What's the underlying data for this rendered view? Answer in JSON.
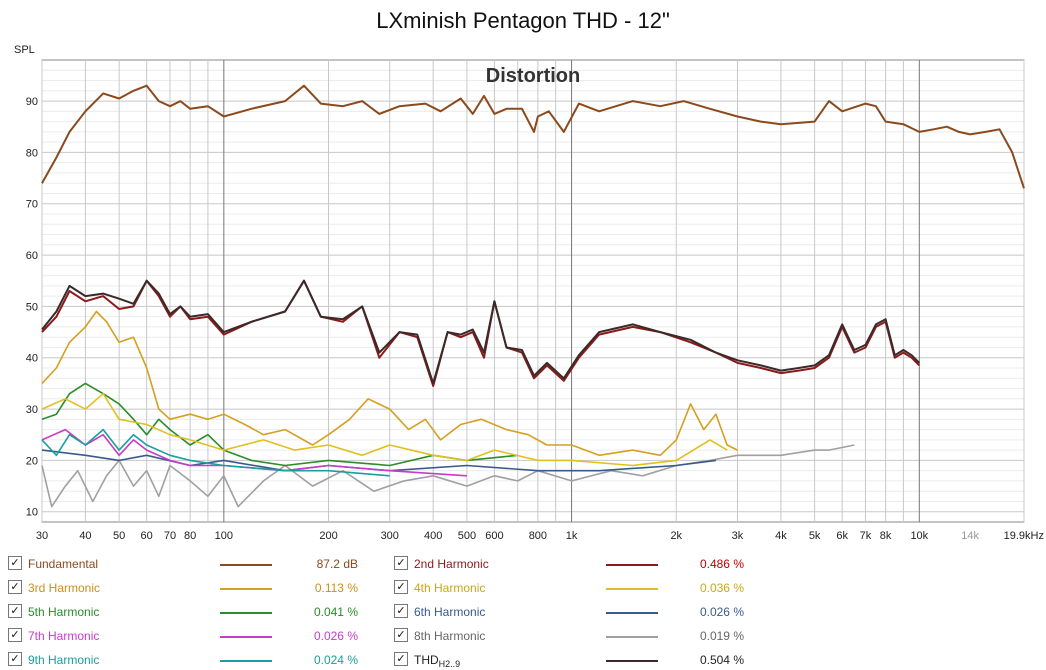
{
  "chart_data": {
    "type": "line",
    "title": "LXminish Pentagon THD - 12\"",
    "subtitle": "Distortion",
    "ylabel": "SPL",
    "xlabel": "",
    "xscale": "log",
    "xlim": [
      30,
      20000
    ],
    "ylim": [
      8,
      98
    ],
    "grid": true,
    "x_tick_labels": [
      {
        "v": 30,
        "t": "30"
      },
      {
        "v": 40,
        "t": "40"
      },
      {
        "v": 50,
        "t": "50"
      },
      {
        "v": 60,
        "t": "60"
      },
      {
        "v": 70,
        "t": "70"
      },
      {
        "v": 80,
        "t": "80"
      },
      {
        "v": 100,
        "t": "100"
      },
      {
        "v": 200,
        "t": "200"
      },
      {
        "v": 300,
        "t": "300"
      },
      {
        "v": 400,
        "t": "400"
      },
      {
        "v": 500,
        "t": "500"
      },
      {
        "v": 600,
        "t": "600"
      },
      {
        "v": 800,
        "t": "800"
      },
      {
        "v": 1000,
        "t": "1k"
      },
      {
        "v": 2000,
        "t": "2k"
      },
      {
        "v": 3000,
        "t": "3k"
      },
      {
        "v": 4000,
        "t": "4k"
      },
      {
        "v": 5000,
        "t": "5k"
      },
      {
        "v": 6000,
        "t": "6k"
      },
      {
        "v": 7000,
        "t": "7k"
      },
      {
        "v": 8000,
        "t": "8k"
      },
      {
        "v": 10000,
        "t": "10k"
      },
      {
        "v": 14000,
        "t": "14k"
      },
      {
        "v": 19900,
        "t": "19.9kHz"
      }
    ],
    "y_ticks": [
      10,
      20,
      30,
      40,
      50,
      60,
      70,
      80,
      90
    ],
    "series": [
      {
        "name": "Fundamental",
        "color": "#8b4a1c",
        "value": "87.2 dB",
        "x": [
          30,
          33,
          36,
          40,
          45,
          50,
          55,
          60,
          65,
          70,
          75,
          80,
          90,
          100,
          120,
          150,
          170,
          190,
          220,
          250,
          280,
          320,
          380,
          420,
          480,
          520,
          560,
          600,
          650,
          720,
          780,
          800,
          860,
          950,
          1050,
          1200,
          1500,
          1800,
          2100,
          2500,
          3000,
          3500,
          4000,
          5000,
          5500,
          6000,
          7000,
          7500,
          8000,
          9000,
          10000,
          11000,
          12000,
          13000,
          14000,
          15500,
          17000,
          18500,
          20000
        ],
        "y": [
          74,
          79,
          84,
          88,
          91.5,
          90.5,
          92,
          93,
          90,
          89,
          90,
          88.5,
          89,
          87,
          88.5,
          90,
          93,
          89.5,
          89,
          90,
          87.5,
          89,
          89.5,
          88,
          90.5,
          87.5,
          91,
          87.5,
          88.5,
          88.5,
          84,
          87,
          88,
          84,
          89.5,
          88,
          90,
          89,
          90,
          88.5,
          87,
          86,
          85.5,
          86,
          90,
          88,
          89.5,
          89,
          86,
          85.5,
          84,
          84.5,
          85,
          84,
          83.5,
          84,
          84.5,
          80,
          73
        ]
      },
      {
        "name": "2nd Harmonic",
        "color": "#8b1a1a",
        "value": "0.486 %",
        "x": [
          30,
          33,
          36,
          40,
          45,
          50,
          55,
          60,
          65,
          70,
          75,
          80,
          90,
          100,
          120,
          150,
          170,
          190,
          220,
          250,
          280,
          320,
          360,
          400,
          440,
          480,
          520,
          560,
          600,
          650,
          720,
          780,
          850,
          950,
          1050,
          1200,
          1500,
          1800,
          2200,
          2600,
          3000,
          3500,
          4000,
          4500,
          5000,
          5500,
          6000,
          6500,
          7000,
          7500,
          8000,
          8500,
          9000,
          9500,
          10000
        ],
        "y": [
          45,
          48,
          53,
          51,
          52,
          49.5,
          50,
          55,
          52,
          48,
          50,
          47.5,
          48,
          44.5,
          47,
          49,
          55,
          48,
          47,
          50,
          40,
          45,
          44,
          34.5,
          45,
          44,
          45,
          40,
          51,
          42,
          41,
          36,
          38.5,
          35.5,
          40,
          44.5,
          46,
          45,
          43,
          41,
          39,
          38,
          37,
          37.5,
          38,
          40,
          46,
          41,
          42,
          46,
          47,
          40,
          41,
          40,
          38.5
        ]
      },
      {
        "name": "3rd Harmonic",
        "color": "#d4a020",
        "value": "0.113 %",
        "x": [
          30,
          33,
          36,
          40,
          43,
          46,
          50,
          55,
          60,
          65,
          70,
          80,
          90,
          100,
          115,
          130,
          150,
          180,
          200,
          230,
          260,
          300,
          340,
          380,
          420,
          480,
          550,
          650,
          750,
          850,
          1000,
          1200,
          1500,
          1800,
          2000,
          2200,
          2400,
          2600,
          2800,
          3000
        ],
        "y": [
          35,
          38,
          43,
          46,
          49,
          47,
          43,
          44,
          38,
          30,
          28,
          29,
          28,
          29,
          27,
          25,
          26,
          23,
          25,
          28,
          32,
          30,
          26,
          28,
          24,
          27,
          28,
          26,
          25,
          23,
          23,
          21,
          22,
          21,
          24,
          31,
          26,
          29,
          23,
          22
        ]
      },
      {
        "name": "4th Harmonic",
        "color": "#e0c020",
        "value": "0.036 %",
        "x": [
          30,
          35,
          40,
          45,
          50,
          60,
          70,
          80,
          100,
          130,
          160,
          200,
          250,
          300,
          400,
          500,
          600,
          800,
          1000,
          1500,
          2000,
          2500,
          2800
        ],
        "y": [
          30,
          32,
          30,
          33,
          28,
          27,
          25,
          24,
          22,
          24,
          22,
          23,
          21,
          23,
          21,
          20,
          22,
          20,
          20,
          19,
          20,
          24,
          22
        ]
      },
      {
        "name": "5th Harmonic",
        "color": "#2a8c2a",
        "value": "0.041 %",
        "x": [
          30,
          33,
          36,
          40,
          45,
          50,
          55,
          60,
          65,
          70,
          80,
          90,
          100,
          120,
          150,
          200,
          300,
          400,
          500,
          700
        ],
        "y": [
          28,
          29,
          33,
          35,
          33,
          31,
          28,
          25,
          28,
          26,
          23,
          25,
          22,
          20,
          19,
          20,
          19,
          21,
          20,
          21
        ]
      },
      {
        "name": "6th Harmonic",
        "color": "#3a5a8c",
        "value": "0.026 %",
        "x": [
          30,
          40,
          50,
          60,
          80,
          100,
          150,
          200,
          300,
          500,
          800,
          1200,
          2000,
          2600
        ],
        "y": [
          22,
          21,
          20,
          21,
          19,
          20,
          18,
          19,
          18,
          19,
          18,
          18,
          19,
          20
        ]
      },
      {
        "name": "7th Harmonic",
        "color": "#c83cc8",
        "value": "0.026 %",
        "x": [
          30,
          35,
          40,
          45,
          50,
          55,
          60,
          70,
          80,
          100,
          150,
          200,
          300,
          500
        ],
        "y": [
          24,
          26,
          23,
          25,
          21,
          24,
          22,
          20,
          19,
          19,
          18,
          19,
          18,
          17
        ]
      },
      {
        "name": "8th Harmonic",
        "color": "#a0a0a0",
        "value": "0.019 %",
        "x": [
          30,
          32,
          35,
          38,
          42,
          46,
          50,
          55,
          60,
          65,
          70,
          80,
          90,
          100,
          110,
          130,
          150,
          180,
          220,
          270,
          330,
          400,
          500,
          600,
          700,
          800,
          1000,
          1300,
          1600,
          2000,
          2500,
          3000,
          4000,
          5000,
          5500,
          6500
        ],
        "y": [
          19,
          11,
          15,
          18,
          12,
          17,
          20,
          15,
          18,
          13,
          19,
          16,
          13,
          17,
          11,
          16,
          19,
          15,
          18,
          14,
          16,
          17,
          15,
          17,
          16,
          18,
          16,
          18,
          17,
          19,
          20,
          21,
          21,
          22,
          22,
          23
        ]
      },
      {
        "name": "9th Harmonic",
        "color": "#1a9e9e",
        "value": "0.024 %",
        "x": [
          30,
          33,
          36,
          40,
          45,
          50,
          55,
          60,
          70,
          80,
          100,
          150,
          200,
          300
        ],
        "y": [
          24,
          21,
          25,
          23,
          26,
          22,
          25,
          23,
          21,
          20,
          19,
          18,
          18,
          17
        ]
      },
      {
        "name": "THD",
        "name_sub": "H2..9",
        "color": "#3a2a2a",
        "value": "0.504 %",
        "x": [
          30,
          33,
          36,
          40,
          45,
          50,
          55,
          60,
          65,
          70,
          75,
          80,
          90,
          100,
          120,
          150,
          170,
          190,
          220,
          250,
          280,
          320,
          360,
          400,
          440,
          480,
          520,
          560,
          600,
          650,
          720,
          780,
          850,
          950,
          1050,
          1200,
          1500,
          1800,
          2200,
          2600,
          3000,
          3500,
          4000,
          4500,
          5000,
          5500,
          6000,
          6500,
          7000,
          7500,
          8000,
          8500,
          9000,
          9500,
          10000
        ],
        "y": [
          45.5,
          49,
          54,
          52,
          52.5,
          51.5,
          50.5,
          55,
          52.5,
          48.5,
          50,
          48,
          48.5,
          45,
          47,
          49,
          55,
          48,
          47.5,
          50,
          41,
          45,
          44.5,
          35,
          45,
          44.5,
          45.5,
          41,
          51,
          42,
          41.5,
          36.5,
          39,
          36,
          40.5,
          45,
          46.5,
          45,
          43.5,
          41,
          39.5,
          38.5,
          37.5,
          38,
          38.5,
          40.5,
          46.5,
          41.5,
          42.5,
          46.5,
          47.5,
          40.5,
          41.5,
          40.5,
          39
        ]
      }
    ]
  }
}
